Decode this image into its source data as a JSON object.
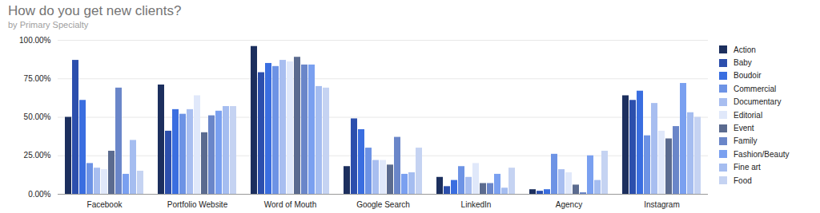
{
  "chart_data": {
    "type": "bar",
    "title": "How do you get new clients?",
    "subtitle": "by Primary Specialty",
    "categories": [
      "Facebook",
      "Portfolio Website",
      "Word of Mouth",
      "Google Search",
      "LinkedIn",
      "Agency",
      "Instagram"
    ],
    "series": [
      {
        "name": "Action",
        "color": "#1c2f5e",
        "values": [
          50,
          71,
          96,
          18,
          11,
          3,
          64
        ]
      },
      {
        "name": "Baby",
        "color": "#2c4fad",
        "values": [
          87,
          41,
          79,
          49,
          5,
          2,
          61
        ]
      },
      {
        "name": "Boudoir",
        "color": "#3a6ee0",
        "values": [
          61,
          55,
          85,
          42,
          9,
          3,
          67
        ]
      },
      {
        "name": "Commercial",
        "color": "#6d93e5",
        "values": [
          20,
          52,
          83,
          30,
          18,
          26,
          38
        ]
      },
      {
        "name": "Documentary",
        "color": "#a8bef0",
        "values": [
          17,
          55,
          87,
          22,
          11,
          16,
          59
        ]
      },
      {
        "name": "Editorial",
        "color": "#e0e8fa",
        "values": [
          16,
          64,
          86,
          22,
          20,
          14,
          41
        ]
      },
      {
        "name": "Event",
        "color": "#5b6b8f",
        "values": [
          28,
          40,
          89,
          19,
          7,
          6,
          36
        ]
      },
      {
        "name": "Family",
        "color": "#6a86c9",
        "values": [
          69,
          51,
          84,
          37,
          7,
          1,
          44
        ]
      },
      {
        "name": "Fashion/Beauty",
        "color": "#7aa0f0",
        "values": [
          13,
          54,
          84,
          13,
          13,
          25,
          72
        ]
      },
      {
        "name": "Fine art",
        "color": "#a5bdf0",
        "values": [
          35,
          57,
          70,
          14,
          4,
          9,
          53
        ]
      },
      {
        "name": "Food",
        "color": "#c5d3f2",
        "values": [
          15,
          57,
          69,
          30,
          17,
          28,
          50
        ]
      }
    ],
    "ylim": [
      0,
      100
    ],
    "yticks": [
      {
        "value": 0,
        "label": "0.00%"
      },
      {
        "value": 25,
        "label": "25.00%"
      },
      {
        "value": 50,
        "label": "50.00%"
      },
      {
        "value": 75,
        "label": "75.00%"
      },
      {
        "value": 100,
        "label": "100.00%"
      }
    ],
    "grid": true,
    "legend": "right"
  }
}
